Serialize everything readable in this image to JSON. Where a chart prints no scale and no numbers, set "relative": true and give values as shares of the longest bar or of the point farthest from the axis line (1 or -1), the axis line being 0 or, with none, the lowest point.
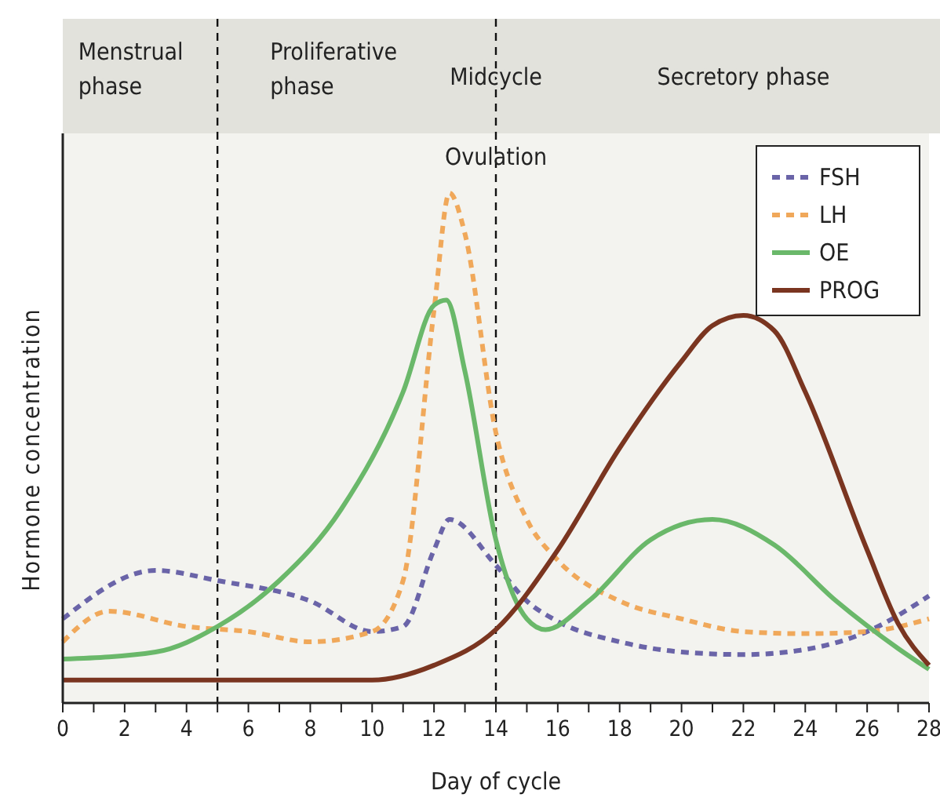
{
  "chart_data": {
    "type": "line",
    "xlabel": "Day of cycle",
    "ylabel": "Hormone concentration",
    "relative": true,
    "xlim": [
      0,
      28
    ],
    "xticks": [
      0,
      {
        "value": 1,
        "label": null
      },
      2,
      {
        "value": 3,
        "label": null
      },
      4,
      {
        "value": 5,
        "label": null
      },
      6,
      {
        "value": 7,
        "label": null
      },
      8,
      {
        "value": 9,
        "label": null
      },
      10,
      {
        "value": 11,
        "label": null
      },
      12,
      {
        "value": 13,
        "label": null
      },
      14,
      {
        "value": 15,
        "label": null
      },
      16,
      {
        "value": 17,
        "label": null
      },
      18,
      {
        "value": 19,
        "label": null
      },
      20,
      {
        "value": 21,
        "label": null
      },
      22,
      {
        "value": 23,
        "label": null
      },
      24,
      {
        "value": 25,
        "label": null
      },
      26,
      {
        "value": 27,
        "label": null
      },
      28
    ],
    "legend": "top right",
    "grid": false,
    "marker": "none",
    "series": [
      {
        "name": "FSH",
        "color": "#6a64a8",
        "line_style": "dashed",
        "x": [
          0,
          3,
          5,
          8,
          10,
          11,
          12,
          12.5,
          14,
          15,
          16,
          18,
          20,
          22,
          24,
          26,
          28
        ],
        "values": [
          0.165,
          0.26,
          0.24,
          0.2,
          0.14,
          0.15,
          0.3,
          0.36,
          0.27,
          0.2,
          0.16,
          0.12,
          0.1,
          0.095,
          0.105,
          0.14,
          0.21
        ]
      },
      {
        "name": "LH",
        "color": "#f0a85a",
        "line_style": "dashed",
        "x": [
          0,
          1.5,
          4,
          6,
          8,
          10,
          11,
          12,
          12.5,
          13,
          14,
          15,
          16,
          18,
          20,
          22,
          24,
          26,
          28
        ],
        "values": [
          0.12,
          0.18,
          0.15,
          0.14,
          0.12,
          0.14,
          0.24,
          0.77,
          1,
          0.92,
          0.53,
          0.36,
          0.28,
          0.2,
          0.165,
          0.14,
          0.136,
          0.14,
          0.165
        ]
      },
      {
        "name": "OE",
        "color": "#6ab86a",
        "line_style": "solid",
        "x": [
          0,
          3,
          5,
          7,
          9,
          11,
          12,
          12.4,
          13,
          14,
          15,
          15.6,
          17,
          19,
          21,
          23,
          25,
          27,
          28
        ],
        "values": [
          0.086,
          0.1,
          0.15,
          0.24,
          0.38,
          0.61,
          0.78,
          0.79,
          0.65,
          0.32,
          0.165,
          0.144,
          0.2,
          0.32,
          0.36,
          0.31,
          0.2,
          0.107,
          0.066
        ]
      },
      {
        "name": "PROG",
        "color": "#7a3520",
        "line_style": "solid",
        "x": [
          0,
          10,
          12,
          14,
          16,
          18,
          20,
          21,
          22,
          23,
          24,
          26,
          27,
          28
        ],
        "values": [
          0.045,
          0.045,
          0.074,
          0.144,
          0.3,
          0.5,
          0.67,
          0.74,
          0.76,
          0.73,
          0.61,
          0.3,
          0.156,
          0.074
        ]
      }
    ],
    "ref_lines": [
      {
        "axis": "x",
        "value": 5,
        "line_style": "dashed",
        "color": "#111111"
      },
      {
        "axis": "x",
        "value": 14,
        "label": "Ovulation",
        "line_style": "dashed",
        "color": "#111111"
      }
    ],
    "annotations": [
      "Menstrual phase",
      "Proliferative phase",
      "Midcycle",
      "Secretory phase"
    ]
  }
}
